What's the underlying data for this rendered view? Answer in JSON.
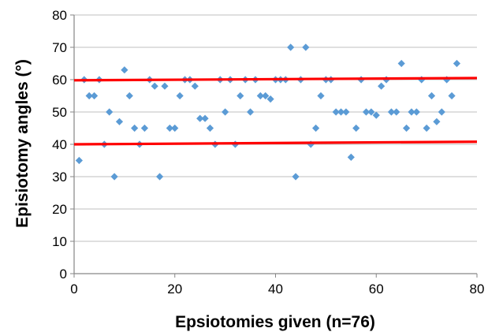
{
  "chart_data": {
    "type": "scatter",
    "title": "",
    "xlabel": "Epsiotomies given (n=76)",
    "ylabel": "Episiotomy angles (°)",
    "xlim": [
      0,
      80
    ],
    "ylim": [
      0,
      80
    ],
    "x_ticks": [
      "0",
      "20",
      "40",
      "60",
      "80"
    ],
    "y_ticks": [
      "0",
      "10",
      "20",
      "30",
      "40",
      "50",
      "60",
      "70",
      "80"
    ],
    "grid": "horizontal",
    "legend": "none",
    "series": [
      {
        "marker": "diamond",
        "color": "#5b9bd5",
        "x": [
          1,
          2,
          3,
          4,
          5,
          6,
          7,
          8,
          9,
          10,
          11,
          12,
          13,
          14,
          15,
          16,
          17,
          18,
          19,
          20,
          21,
          22,
          23,
          24,
          25,
          26,
          27,
          28,
          29,
          30,
          31,
          32,
          33,
          34,
          35,
          36,
          37,
          38,
          39,
          40,
          41,
          42,
          43,
          44,
          45,
          46,
          47,
          48,
          49,
          50,
          51,
          52,
          53,
          54,
          55,
          56,
          57,
          58,
          59,
          60,
          61,
          62,
          63,
          64,
          65,
          66,
          67,
          68,
          69,
          70,
          71,
          72,
          73,
          74,
          75,
          76
        ],
        "y": [
          35,
          60,
          55,
          55,
          60,
          40,
          50,
          30,
          47,
          63,
          55,
          45,
          40,
          45,
          60,
          58,
          30,
          58,
          45,
          45,
          55,
          60,
          60,
          58,
          48,
          48,
          45,
          40,
          60,
          50,
          60,
          40,
          55,
          60,
          50,
          60,
          55,
          55,
          54,
          60,
          60,
          60,
          70,
          30,
          60,
          70,
          40,
          45,
          55,
          60,
          60,
          50,
          50,
          50,
          36,
          45,
          60,
          50,
          50,
          49,
          58,
          60,
          50,
          50,
          65,
          45,
          50,
          50,
          60,
          45,
          55,
          47,
          50,
          60,
          55,
          65
        ]
      }
    ],
    "reference_lines": [
      {
        "color": "#ff0000",
        "x": [
          0,
          80
        ],
        "y": [
          40,
          40.8
        ]
      },
      {
        "color": "#ff0000",
        "x": [
          0,
          80
        ],
        "y": [
          59.8,
          60.5
        ]
      }
    ]
  }
}
